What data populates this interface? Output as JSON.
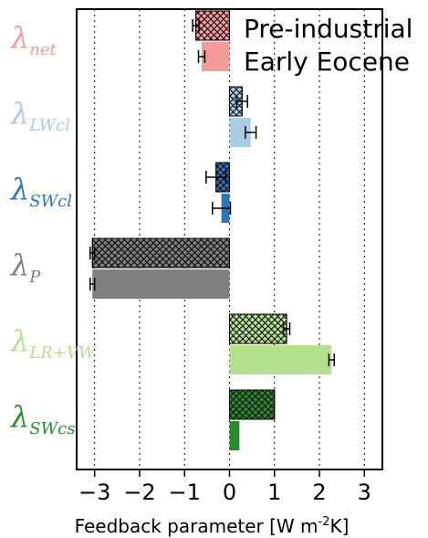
{
  "chart_data": {
    "type": "bar",
    "orientation": "horizontal",
    "xlabel": "Feedback parameter [W m",
    "xlabel_sup": "-2",
    "xlabel_tail": "K]",
    "xlim": [
      -3.4,
      3.4
    ],
    "xticks": [
      -3,
      -2,
      -1,
      0,
      1,
      2,
      3
    ],
    "xtick_labels": [
      "−3",
      "−2",
      "−1",
      "0",
      "1",
      "2",
      "3"
    ],
    "grid": "vertical dotted",
    "legend_placement": "top-right",
    "series": [
      {
        "name": "Pre-industrial",
        "hatch": "crosshatch"
      },
      {
        "name": "Early Eocene",
        "hatch": "none"
      }
    ],
    "categories": [
      {
        "symbol": "λ",
        "sub": "net",
        "color": "#f59b9b",
        "pre": {
          "value": -0.75,
          "err": 0.07
        },
        "eocene": {
          "value": -0.62,
          "err": 0.07
        }
      },
      {
        "symbol": "λ",
        "sub": "LWcl",
        "color": "#a9cde6",
        "pre": {
          "value": 0.28,
          "err": 0.12
        },
        "eocene": {
          "value": 0.47,
          "err": 0.12
        }
      },
      {
        "symbol": "λ",
        "sub": "SWcl",
        "color": "#2f74b3",
        "pre": {
          "value": -0.3,
          "err": 0.22
        },
        "eocene": {
          "value": -0.18,
          "err": 0.2
        }
      },
      {
        "symbol": "λ",
        "sub": "P",
        "color": "#7f7f7f",
        "pre": {
          "value": -3.05,
          "err": 0.05
        },
        "eocene": {
          "value": -3.05,
          "err": 0.05
        }
      },
      {
        "symbol": "λ",
        "sub": "LR+VW",
        "color": "#b5e08e",
        "pre": {
          "value": 1.27,
          "err": 0.07
        },
        "eocene": {
          "value": 2.27,
          "err": 0.06
        }
      },
      {
        "symbol": "λ",
        "sub": "SWcs",
        "color": "#2b8a2b",
        "pre": {
          "value": 1.0,
          "err": 0.0
        },
        "eocene": {
          "value": 0.22,
          "err": 0.0
        }
      }
    ]
  }
}
